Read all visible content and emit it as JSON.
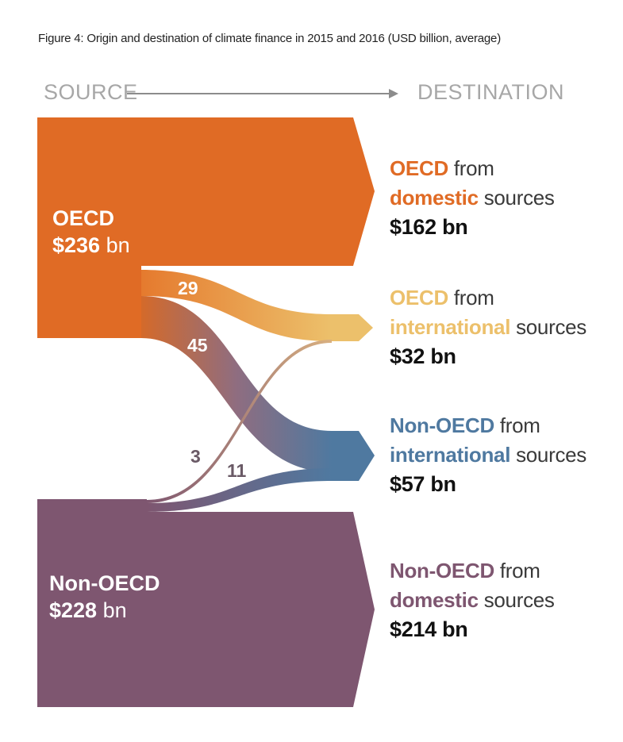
{
  "caption": "Figure 4: Origin and destination of climate finance in 2015 and 2016 (USD billion, average)",
  "header": {
    "source": "SOURCE",
    "destination": "DESTINATION"
  },
  "sources": [
    {
      "name": "OECD",
      "value": "$236",
      "unit": "bn"
    },
    {
      "name": "Non-OECD",
      "value": "$228",
      "unit": "bn"
    }
  ],
  "destinations": [
    {
      "region": "OECD",
      "from": "from",
      "kind": "domestic",
      "suffix": "sources",
      "value": "$162 bn"
    },
    {
      "region": "OECD",
      "from": "from",
      "kind": "international",
      "suffix": "sources",
      "value": "$32 bn"
    },
    {
      "region": "Non-OECD",
      "from": "from",
      "kind": "international",
      "suffix": "sources",
      "value": "$57 bn"
    },
    {
      "region": "Non-OECD",
      "from": "from",
      "kind": "domestic",
      "suffix": "sources",
      "value": "$214 bn"
    }
  ],
  "flows": [
    {
      "from": "OECD",
      "to": "OECD international",
      "value": "29"
    },
    {
      "from": "OECD",
      "to": "Non-OECD international",
      "value": "45"
    },
    {
      "from": "Non-OECD",
      "to": "OECD international",
      "value": "3"
    },
    {
      "from": "Non-OECD",
      "to": "Non-OECD international",
      "value": "11"
    }
  ],
  "colors": {
    "oecd": "#e06b25",
    "oecd_international": "#ecc06b",
    "non_oecd_international": "#4f79a0",
    "non_oecd": "#7e5670",
    "axis": "#8c8c8c"
  }
}
